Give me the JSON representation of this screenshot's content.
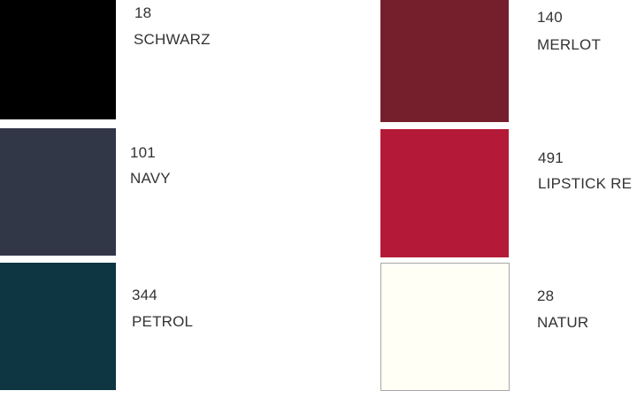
{
  "swatches": [
    {
      "code": "18",
      "name": "SCHWARZ",
      "color": "#000000"
    },
    {
      "code": "101",
      "name": "NAVY",
      "color": "#323748"
    },
    {
      "code": "344",
      "name": "PETROL",
      "color": "#0d3542"
    },
    {
      "code": "140",
      "name": "MERLOT",
      "color": "#751f2d"
    },
    {
      "code": "491",
      "name": "LIPSTICK RE",
      "color": "#b41a38"
    },
    {
      "code": "28",
      "name": "NATUR",
      "color": "#fffff6"
    }
  ]
}
